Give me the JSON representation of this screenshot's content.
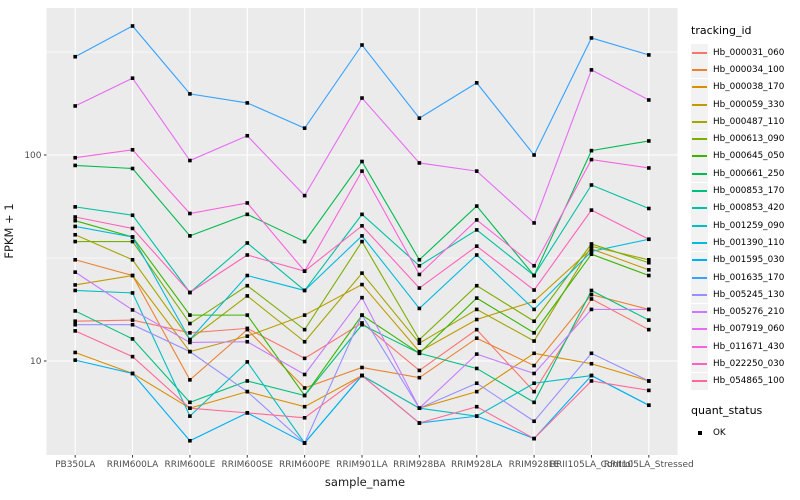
{
  "style": {
    "panel_bg": "#EBEBEB",
    "grid_color": "#FFFFFF",
    "marker_color": "#000000",
    "tick_text_color": "#4D4D4D",
    "legend_key_bg": "#F2F2F2"
  },
  "chart_data": {
    "type": "line",
    "title": "",
    "xlabel": "sample_name",
    "ylabel": "FPKM + 1",
    "y_scale": "log10",
    "ylim": [
      3.5,
      520
    ],
    "y_ticks": [
      10,
      100
    ],
    "y_minor_gridlines": [
      31.6,
      316
    ],
    "grid": "on",
    "marker": "black-square",
    "legend_position": "right",
    "categories": [
      "PB350LA",
      "RRIM600LA",
      "RRIM600LE",
      "RRIM600SE",
      "RRIM600PE",
      "RRIM901LA",
      "RRIM928BA",
      "RRIM928LA",
      "RRIM928LE",
      "RRII105LA_Control",
      "RRII105LA_Stressed"
    ],
    "series": [
      {
        "name": "Hb_000031_060",
        "color": "#F8766D",
        "values": [
          15.6,
          15.8,
          13.7,
          14.4,
          10.3,
          15.3,
          9.0,
          14.2,
          7.1,
          20.0,
          14.2
        ]
      },
      {
        "name": "Hb_000034_100",
        "color": "#EA8331",
        "values": [
          31.0,
          26.0,
          8.1,
          14.2,
          7.4,
          9.3,
          8.3,
          12.9,
          9.5,
          21.0,
          17.8
        ]
      },
      {
        "name": "Hb_000038_170",
        "color": "#D89000",
        "values": [
          11.0,
          8.7,
          5.9,
          7.1,
          6.0,
          8.5,
          5.9,
          7.1,
          10.9,
          9.7,
          8.0
        ]
      },
      {
        "name": "Hb_000059_330",
        "color": "#C09B00",
        "values": [
          23.4,
          26.0,
          11.1,
          13.2,
          16.7,
          23.5,
          11.1,
          15.9,
          19.5,
          35.0,
          27.7
        ]
      },
      {
        "name": "Hb_000487_110",
        "color": "#A3A500",
        "values": [
          41.0,
          31.0,
          12.7,
          20.7,
          12.4,
          26.7,
          12.2,
          17.8,
          12.5,
          36.0,
          31.0
        ]
      },
      {
        "name": "Hb_000613_090",
        "color": "#7CAE00",
        "values": [
          38.0,
          38.0,
          15.2,
          23.2,
          14.2,
          38.0,
          12.7,
          23.2,
          15.6,
          37.0,
          30.0
        ]
      },
      {
        "name": "Hb_000645_050",
        "color": "#39B600",
        "values": [
          48.0,
          40.0,
          16.7,
          16.7,
          6.8,
          16.7,
          10.9,
          20.2,
          13.7,
          33.0,
          26.0
        ]
      },
      {
        "name": "Hb_000661_250",
        "color": "#00BB4E",
        "values": [
          89.0,
          86.0,
          40.5,
          51.5,
          38.0,
          93.0,
          31.0,
          56.5,
          26.0,
          105.0,
          117.0
        ]
      },
      {
        "name": "Hb_000853_170",
        "color": "#00BF7D",
        "values": [
          17.5,
          12.8,
          6.3,
          8.0,
          6.8,
          15.0,
          10.9,
          9.2,
          6.3,
          22.0,
          15.8
        ]
      },
      {
        "name": "Hb_000853_420",
        "color": "#00C1A3",
        "values": [
          56.0,
          51.0,
          21.5,
          37.4,
          22.0,
          51.5,
          29.0,
          43.3,
          26.0,
          71.5,
          55.0
        ]
      },
      {
        "name": "Hb_001259_090",
        "color": "#00BFC4",
        "values": [
          22.0,
          21.4,
          5.4,
          9.9,
          4.0,
          8.5,
          5.9,
          5.4,
          7.8,
          8.5,
          6.1
        ]
      },
      {
        "name": "Hb_001390_110",
        "color": "#00BAE0",
        "values": [
          45.0,
          40.0,
          12.7,
          26.0,
          22.0,
          40.5,
          18.0,
          32.7,
          17.8,
          34.0,
          39.0
        ]
      },
      {
        "name": "Hb_001595_030",
        "color": "#00B0F6",
        "values": [
          10.1,
          8.7,
          4.1,
          5.6,
          4.0,
          8.5,
          5.0,
          5.4,
          4.2,
          8.5,
          6.1
        ]
      },
      {
        "name": "Hb_001635_170",
        "color": "#35A2FF",
        "values": [
          300,
          423,
          198,
          179,
          135,
          342,
          151,
          224,
          100,
          370,
          306
        ]
      },
      {
        "name": "Hb_005245_130",
        "color": "#9590FF",
        "values": [
          15.0,
          15.0,
          11.1,
          7.1,
          4.0,
          16.7,
          5.9,
          7.8,
          5.1,
          10.9,
          8.0
        ]
      },
      {
        "name": "Hb_005276_210",
        "color": "#C77CFF",
        "values": [
          27.0,
          17.7,
          12.3,
          12.4,
          8.6,
          20.3,
          5.9,
          10.8,
          8.7,
          17.8,
          17.8
        ]
      },
      {
        "name": "Hb_007919_060",
        "color": "#E76BF3",
        "values": [
          173,
          236,
          94,
          124,
          63.5,
          189,
          91.5,
          83.5,
          46.8,
          259,
          185
        ]
      },
      {
        "name": "Hb_011671_430",
        "color": "#FA62DB",
        "values": [
          97,
          106,
          52,
          58.5,
          27.3,
          83.5,
          26.3,
          48.4,
          29.0,
          95.0,
          86.5
        ]
      },
      {
        "name": "Hb_022250_030",
        "color": "#FF62BC",
        "values": [
          50.0,
          44.0,
          21.5,
          32.7,
          27.3,
          45.3,
          22.6,
          36.1,
          22.1,
          54.0,
          39.0
        ]
      },
      {
        "name": "Hb_054865_100",
        "color": "#FF6A98",
        "values": [
          14.0,
          10.5,
          5.9,
          5.6,
          5.3,
          8.5,
          5.0,
          6.0,
          4.2,
          8.0,
          7.2
        ]
      }
    ],
    "legend": {
      "tracking_title": "tracking_id",
      "quant_title": "quant_status",
      "quant_items": [
        {
          "label": "OK"
        }
      ]
    }
  }
}
